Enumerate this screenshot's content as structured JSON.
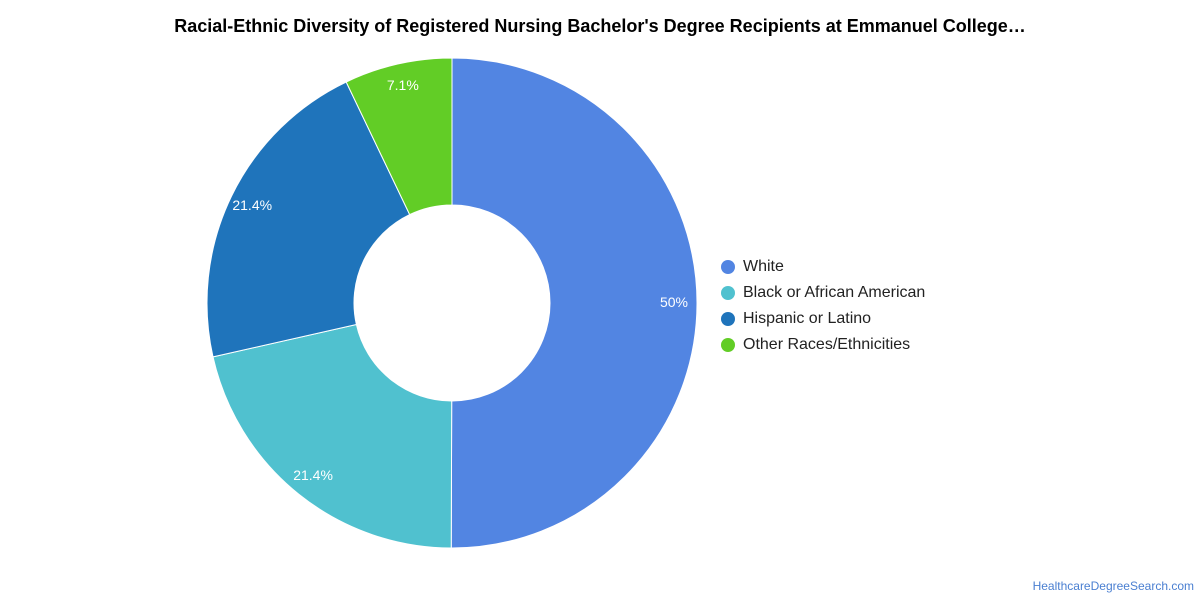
{
  "chart_data": {
    "type": "pie",
    "title": "Racial-Ethnic Diversity of Registered Nursing Bachelor's Degree Recipients at Emmanuel College…",
    "donut": true,
    "categories": [
      "White",
      "Black or African American",
      "Hispanic or Latino",
      "Other Races/Ethnicities"
    ],
    "values": [
      50,
      21.4,
      21.4,
      7.1
    ],
    "data_labels": [
      "50%",
      "21.4%",
      "21.4%",
      "7.1%"
    ],
    "colors": [
      "#5285e2",
      "#50c1cf",
      "#1f74bb",
      "#62cd26"
    ],
    "legend_position": "right"
  },
  "attribution": "HealthcareDegreeSearch.com"
}
